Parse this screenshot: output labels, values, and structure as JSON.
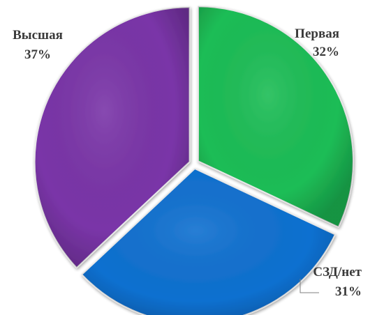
{
  "chart_data": {
    "type": "pie",
    "title": "",
    "slices": [
      {
        "label": "Первая",
        "value": 32,
        "value_label": "32%",
        "color": "#1dbd56"
      },
      {
        "label": "СЗД/нет",
        "value": 31,
        "value_label": "31%",
        "color": "#1070d0"
      },
      {
        "label": "Высшая",
        "value": 37,
        "value_label": "37%",
        "color": "#7a35a8"
      }
    ],
    "start": "12 o'clock",
    "direction": "clockwise",
    "exploded": true,
    "legend": "none"
  }
}
